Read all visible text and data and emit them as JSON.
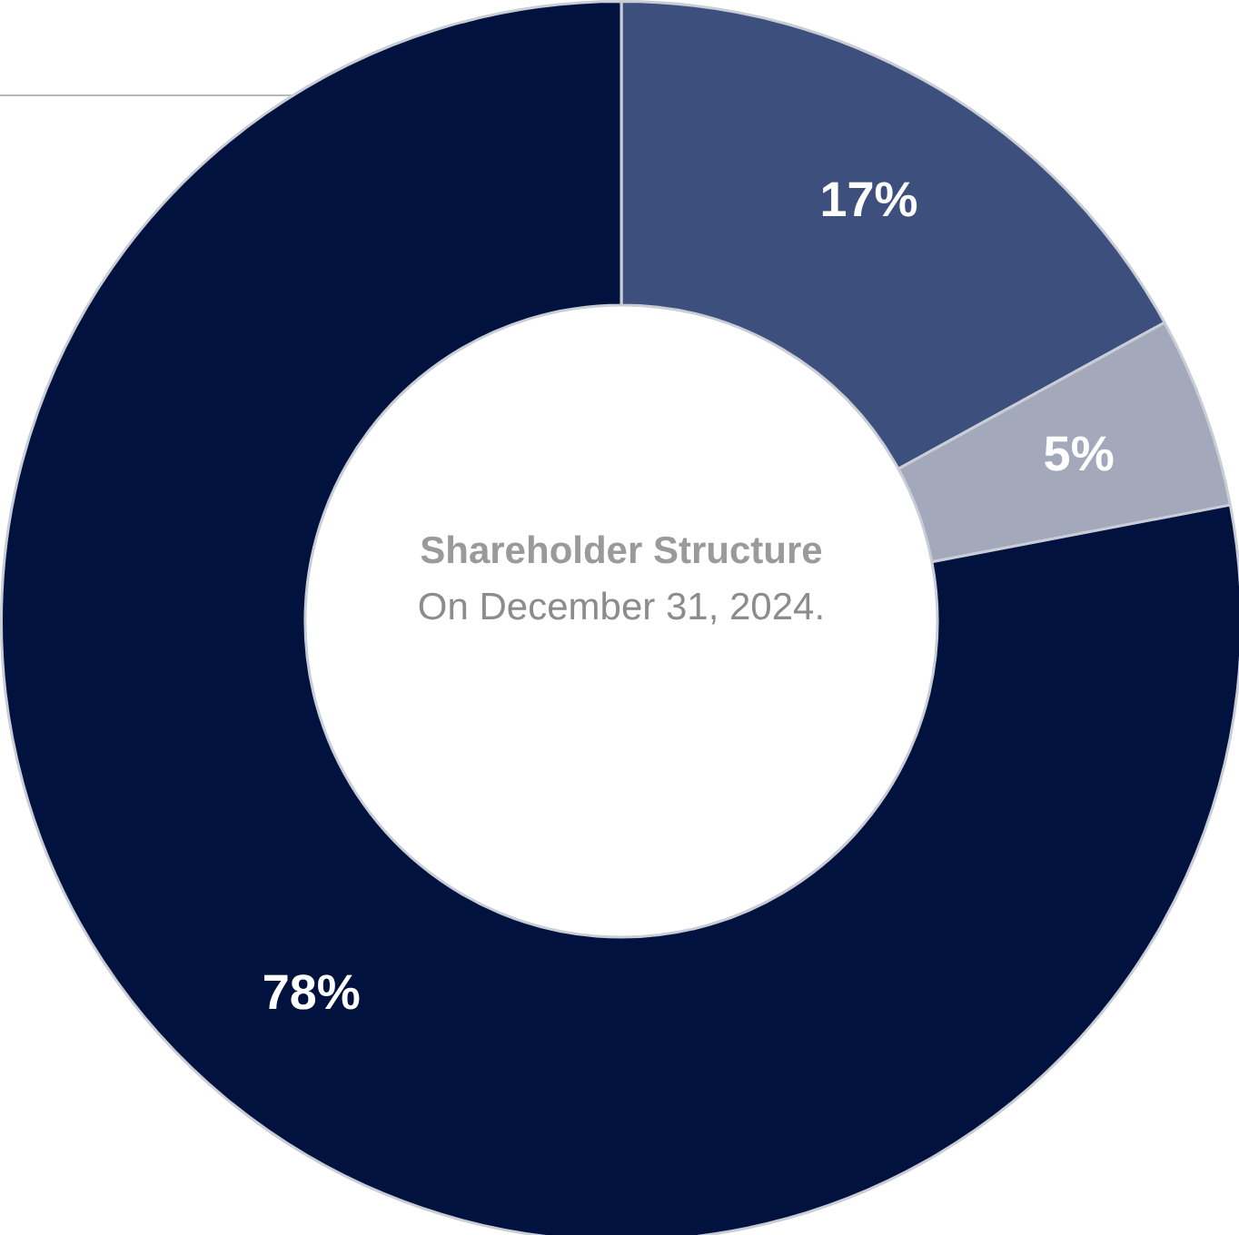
{
  "chart_data": {
    "type": "donut",
    "title": "Shareholder Structure",
    "subtitle": "On December 31, 2024.",
    "categories": [
      null,
      null,
      null
    ],
    "values": [
      17,
      5,
      78
    ],
    "colors": [
      "#3d4f7c",
      "#a3a9bb",
      "#02123f"
    ],
    "value_labels": [
      "17%",
      "5%",
      "78%"
    ],
    "legend": false
  }
}
